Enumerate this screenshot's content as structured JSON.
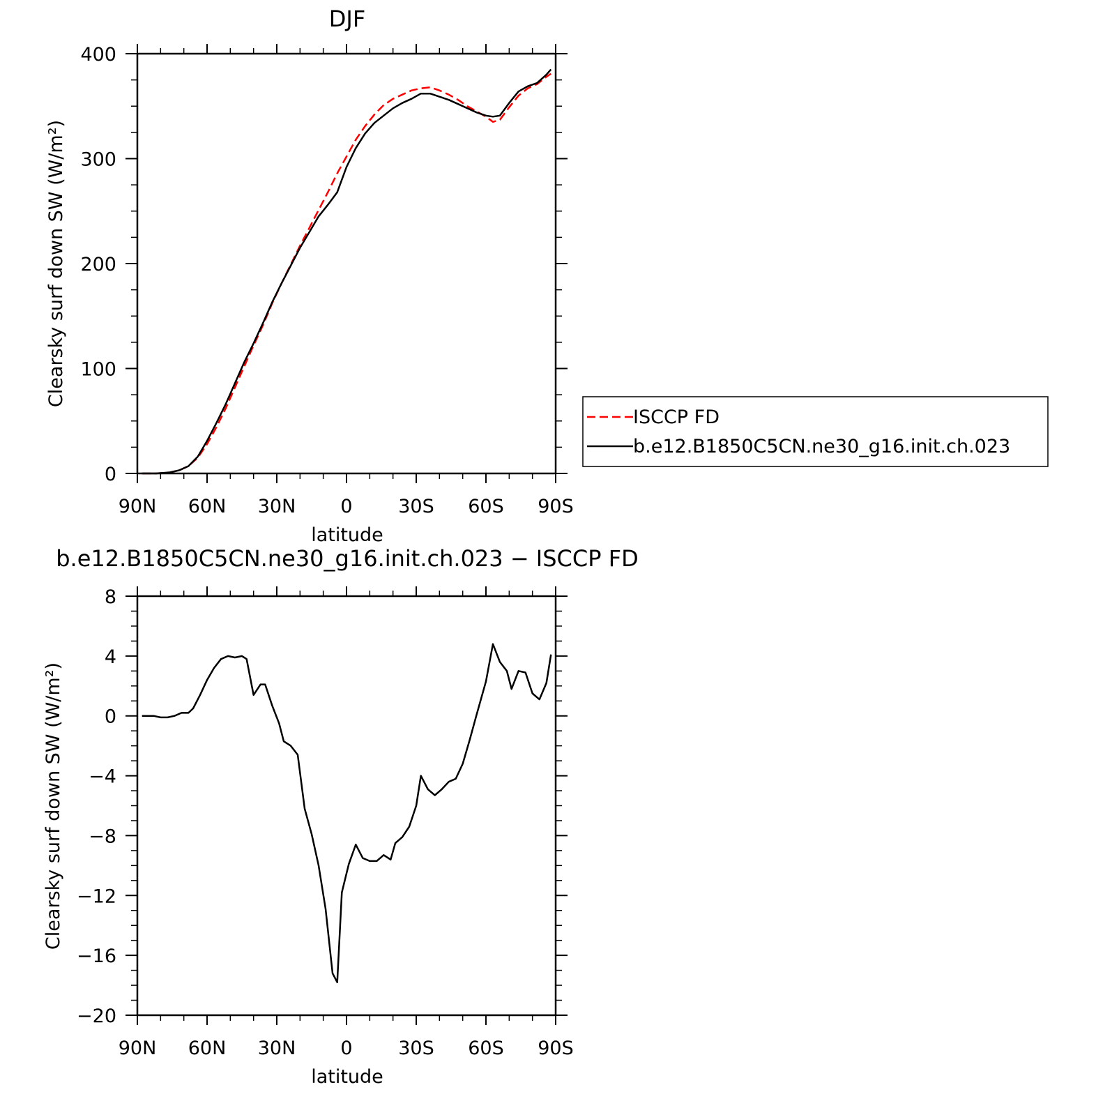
{
  "chart_data": [
    {
      "type": "line",
      "title": "DJF",
      "xlabel": "latitude",
      "ylabel": "Clearsky surf down SW (W/m²)",
      "xlim": [
        -90,
        90
      ],
      "ylim": [
        0,
        400
      ],
      "x_ticks": [
        {
          "value": -90,
          "label": "90N"
        },
        {
          "value": -60,
          "label": "60N"
        },
        {
          "value": -30,
          "label": "30N"
        },
        {
          "value": 0,
          "label": "0"
        },
        {
          "value": 30,
          "label": "30S"
        },
        {
          "value": 60,
          "label": "60S"
        },
        {
          "value": 90,
          "label": "90S"
        }
      ],
      "y_ticks": [
        {
          "value": 0,
          "label": "0"
        },
        {
          "value": 100,
          "label": "100"
        },
        {
          "value": 200,
          "label": "200"
        },
        {
          "value": 300,
          "label": "300"
        },
        {
          "value": 400,
          "label": "400"
        }
      ],
      "legend_position": "right",
      "x": [
        -88,
        -82,
        -76,
        -72,
        -68,
        -64,
        -60,
        -56,
        -52,
        -48,
        -44,
        -40,
        -36,
        -32,
        -28,
        -24,
        -20,
        -16,
        -12,
        -8,
        -4,
        0,
        4,
        8,
        12,
        16,
        20,
        24,
        28,
        32,
        36,
        40,
        44,
        48,
        52,
        56,
        60,
        63,
        66,
        70,
        74,
        78,
        82,
        86,
        88
      ],
      "series": [
        {
          "name": "ISCCP FD",
          "color": "#ff0000",
          "dash": true,
          "values": [
            0,
            0,
            1,
            3,
            7,
            15,
            28,
            44,
            62,
            82,
            102,
            122,
            141,
            162,
            181,
            199,
            217,
            234,
            251,
            268,
            286,
            302,
            318,
            331,
            342,
            351,
            357,
            361,
            365,
            367,
            368,
            365,
            361,
            356,
            350,
            345,
            340,
            335,
            337,
            349,
            360,
            367,
            371,
            378,
            381
          ]
        },
        {
          "name": "b.e12.B1850C5CN.ne30_g16.init.ch.023",
          "color": "#000000",
          "dash": false,
          "values": [
            0,
            0,
            1,
            3,
            7,
            16,
            31,
            48,
            66,
            86,
            106,
            124,
            143,
            163,
            181,
            198,
            215,
            230,
            245,
            256,
            268,
            292,
            310,
            324,
            334,
            341,
            348,
            353,
            357,
            362,
            362,
            359,
            356,
            352,
            348,
            344,
            341,
            340,
            341,
            353,
            364,
            369,
            372,
            380,
            385
          ]
        }
      ]
    },
    {
      "type": "line",
      "title": "b.e12.B1850C5CN.ne30_g16.init.ch.023 − ISCCP FD",
      "xlabel": "latitude",
      "ylabel": "Clearsky surf down SW (W/m²)",
      "xlim": [
        -90,
        90
      ],
      "ylim": [
        -20,
        8
      ],
      "x_ticks": [
        {
          "value": -90,
          "label": "90N"
        },
        {
          "value": -60,
          "label": "60N"
        },
        {
          "value": -30,
          "label": "30N"
        },
        {
          "value": 0,
          "label": "0"
        },
        {
          "value": 30,
          "label": "30S"
        },
        {
          "value": 60,
          "label": "60S"
        },
        {
          "value": 90,
          "label": "90S"
        }
      ],
      "y_ticks": [
        {
          "value": -20,
          "label": "−20"
        },
        {
          "value": -16,
          "label": "−16"
        },
        {
          "value": -12,
          "label": "−12"
        },
        {
          "value": -8,
          "label": "−8"
        },
        {
          "value": -4,
          "label": "−4"
        },
        {
          "value": 0,
          "label": "0"
        },
        {
          "value": 4,
          "label": "4"
        },
        {
          "value": 8,
          "label": "8"
        }
      ],
      "series": [
        {
          "color": "#000000",
          "x": [
            -88,
            -83,
            -80,
            -77,
            -74,
            -71,
            -68,
            -66,
            -63,
            -60,
            -57,
            -54,
            -51,
            -48,
            -45,
            -43,
            -40,
            -37,
            -35,
            -32,
            -29,
            -27,
            -24,
            -21,
            -18,
            -15,
            -12,
            -9,
            -6,
            -4,
            -2,
            1,
            4,
            7,
            10,
            13,
            16,
            19,
            21,
            24,
            27,
            30,
            32,
            35,
            38,
            41,
            44,
            47,
            50,
            53,
            56,
            60,
            63,
            66,
            69,
            71,
            74,
            77,
            80,
            83,
            86,
            88
          ],
          "values": [
            0,
            0,
            -0.1,
            -0.1,
            0,
            0.2,
            0.2,
            0.5,
            1.4,
            2.4,
            3.2,
            3.8,
            4.0,
            3.9,
            4.0,
            3.8,
            1.4,
            2.1,
            2.1,
            0.7,
            -0.5,
            -1.7,
            -2.0,
            -2.6,
            -6.2,
            -7.9,
            -10.0,
            -12.9,
            -17.2,
            -17.8,
            -11.8,
            -9.9,
            -8.6,
            -9.5,
            -9.7,
            -9.7,
            -9.3,
            -9.6,
            -8.5,
            -8.1,
            -7.4,
            -6.0,
            -4.0,
            -4.9,
            -5.3,
            -4.9,
            -4.4,
            -4.2,
            -3.2,
            -1.6,
            0.1,
            2.3,
            4.8,
            3.6,
            3.0,
            1.8,
            3.0,
            2.9,
            1.5,
            1.1,
            2.2,
            4.1
          ]
        }
      ]
    }
  ]
}
